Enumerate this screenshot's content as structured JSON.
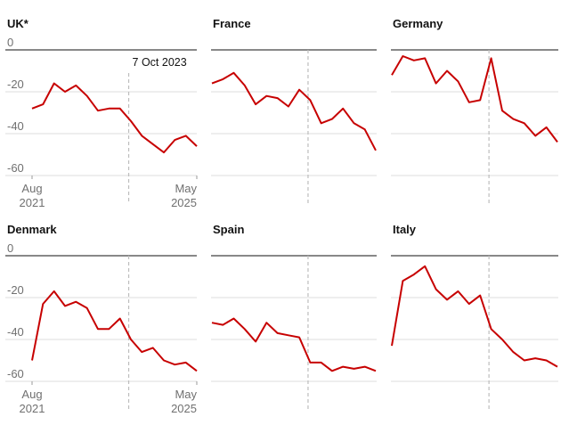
{
  "colors": {
    "line": "#c70000",
    "grid": "#dcdcdc",
    "zero": "#121212",
    "marker": "#bdbdbd",
    "text": "#121212",
    "tick": "#707070"
  },
  "chart_data": [
    {
      "type": "line",
      "title": "UK*",
      "ylim": [
        -60,
        0
      ],
      "yticks": [
        "0",
        "-20",
        "-40",
        "-60"
      ],
      "x": [
        "Aug 2021",
        "Nov 2021",
        "Feb 2022",
        "May 2022",
        "Aug 2022",
        "Nov 2022",
        "Feb 2023",
        "May 2023",
        "Aug 2023",
        "Nov 2023",
        "Feb 2024",
        "May 2024",
        "Aug 2024",
        "Nov 2024",
        "Feb 2025",
        "May 2025"
      ],
      "values": [
        -28,
        -26,
        -16,
        -20,
        -17,
        -22,
        -29,
        -28,
        -28,
        -34,
        -41,
        -45,
        -49,
        -43,
        -41,
        -46
      ],
      "x_start_label": [
        "Aug",
        "2021"
      ],
      "x_end_label": [
        "May",
        "2025"
      ],
      "annotation": "7 Oct 2023",
      "marker_index": 8.8
    },
    {
      "type": "line",
      "title": "France",
      "ylim": [
        -60,
        0
      ],
      "x": [
        "Aug 2021",
        "Nov 2021",
        "Feb 2022",
        "May 2022",
        "Aug 2022",
        "Nov 2022",
        "Feb 2023",
        "May 2023",
        "Aug 2023",
        "Nov 2023",
        "Feb 2024",
        "May 2024",
        "Aug 2024",
        "Nov 2024",
        "Feb 2025",
        "May 2025"
      ],
      "values": [
        -16,
        -14,
        -11,
        -17,
        -26,
        -22,
        -23,
        -27,
        -19,
        -24,
        -35,
        -33,
        -28,
        -35,
        -38,
        -48
      ],
      "marker_index": 8.8
    },
    {
      "type": "line",
      "title": "Germany",
      "ylim": [
        -60,
        0
      ],
      "x": [
        "Aug 2021",
        "Nov 2021",
        "Feb 2022",
        "May 2022",
        "Aug 2022",
        "Nov 2022",
        "Feb 2023",
        "May 2023",
        "Aug 2023",
        "Nov 2023",
        "Feb 2024",
        "May 2024",
        "Aug 2024",
        "Nov 2024",
        "Feb 2025",
        "May 2025"
      ],
      "values": [
        -12,
        -3,
        -5,
        -4,
        -16,
        -10,
        -15,
        -25,
        -24,
        -4,
        -29,
        -33,
        -35,
        -41,
        -37,
        -44
      ],
      "marker_index": 8.8
    },
    {
      "type": "line",
      "title": "Denmark",
      "ylim": [
        -60,
        0
      ],
      "yticks": [
        "0",
        "-20",
        "-40",
        "-60"
      ],
      "x": [
        "Aug 2021",
        "Nov 2021",
        "Feb 2022",
        "May 2022",
        "Aug 2022",
        "Nov 2022",
        "Feb 2023",
        "May 2023",
        "Aug 2023",
        "Nov 2023",
        "Feb 2024",
        "May 2024",
        "Aug 2024",
        "Nov 2024",
        "Feb 2025",
        "May 2025"
      ],
      "values": [
        -50,
        -23,
        -17,
        -24,
        -22,
        -25,
        -35,
        -35,
        -30,
        -40,
        -46,
        -44,
        -50,
        -52,
        -51,
        -55
      ],
      "x_start_label": [
        "Aug",
        "2021"
      ],
      "x_end_label": [
        "May",
        "2025"
      ],
      "marker_index": 8.8
    },
    {
      "type": "line",
      "title": "Spain",
      "ylim": [
        -60,
        0
      ],
      "x": [
        "Aug 2021",
        "Nov 2021",
        "Feb 2022",
        "May 2022",
        "Aug 2022",
        "Nov 2022",
        "Feb 2023",
        "May 2023",
        "Aug 2023",
        "Nov 2023",
        "Feb 2024",
        "May 2024",
        "Aug 2024",
        "Nov 2024",
        "Feb 2025",
        "May 2025"
      ],
      "values": [
        -32,
        -33,
        -30,
        -35,
        -41,
        -32,
        -37,
        -38,
        -39,
        -51,
        -51,
        -55,
        -53,
        -54,
        -53,
        -55
      ],
      "marker_index": 8.8
    },
    {
      "type": "line",
      "title": "Italy",
      "ylim": [
        -60,
        0
      ],
      "x": [
        "Aug 2021",
        "Nov 2021",
        "Feb 2022",
        "May 2022",
        "Aug 2022",
        "Nov 2022",
        "Feb 2023",
        "May 2023",
        "Aug 2023",
        "Nov 2023",
        "Feb 2024",
        "May 2024",
        "Aug 2024",
        "Nov 2024",
        "Feb 2025",
        "May 2025"
      ],
      "values": [
        -43,
        -12,
        -9,
        -5,
        -16,
        -21,
        -17,
        -23,
        -19,
        -35,
        -40,
        -46,
        -50,
        -49,
        -50,
        -53
      ],
      "marker_index": 8.8
    }
  ]
}
